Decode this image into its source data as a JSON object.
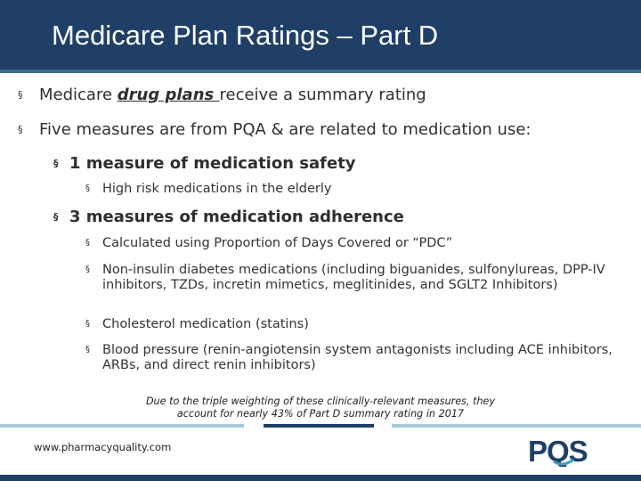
{
  "slide": {
    "title": "Medicare Plan Ratings – Part D",
    "bullet_char": "§",
    "colors": {
      "brand_navy": "#1f3f66",
      "brand_light_blue": "#a8c9dc",
      "logo_teal": "#3aa3b5"
    }
  },
  "bullets": {
    "b1_pre": "Medicare ",
    "b1_emph": "drug plans ",
    "b1_post": "receive a summary rating",
    "b2": "Five measures are from PQA & are related to medication use:",
    "safety_heading": "1 measure of medication safety",
    "safety_items": [
      "High risk medications in the elderly"
    ],
    "adherence_heading": "3 measures of medication adherence",
    "adherence_items": [
      "Calculated using Proportion of Days Covered or “PDC”",
      "Non-insulin diabetes medications (including biguanides, sulfonylureas, DPP-IV inhibitors, TZDs, incretin mimetics, meglitinides, and SGLT2 Inhibitors)",
      "Cholesterol medication (statins)",
      "Blood pressure (renin-angiotensin system antagonists including ACE inhibitors, ARBs, and direct renin inhibitors)"
    ]
  },
  "footnote": {
    "line1": "Due to the triple weighting of these clinically-relevant measures, they",
    "line2": "account for nearly 43% of Part D summary rating in 2017"
  },
  "footer": {
    "website": "www.pharmacyquality.com",
    "logo_text": "PQS"
  }
}
